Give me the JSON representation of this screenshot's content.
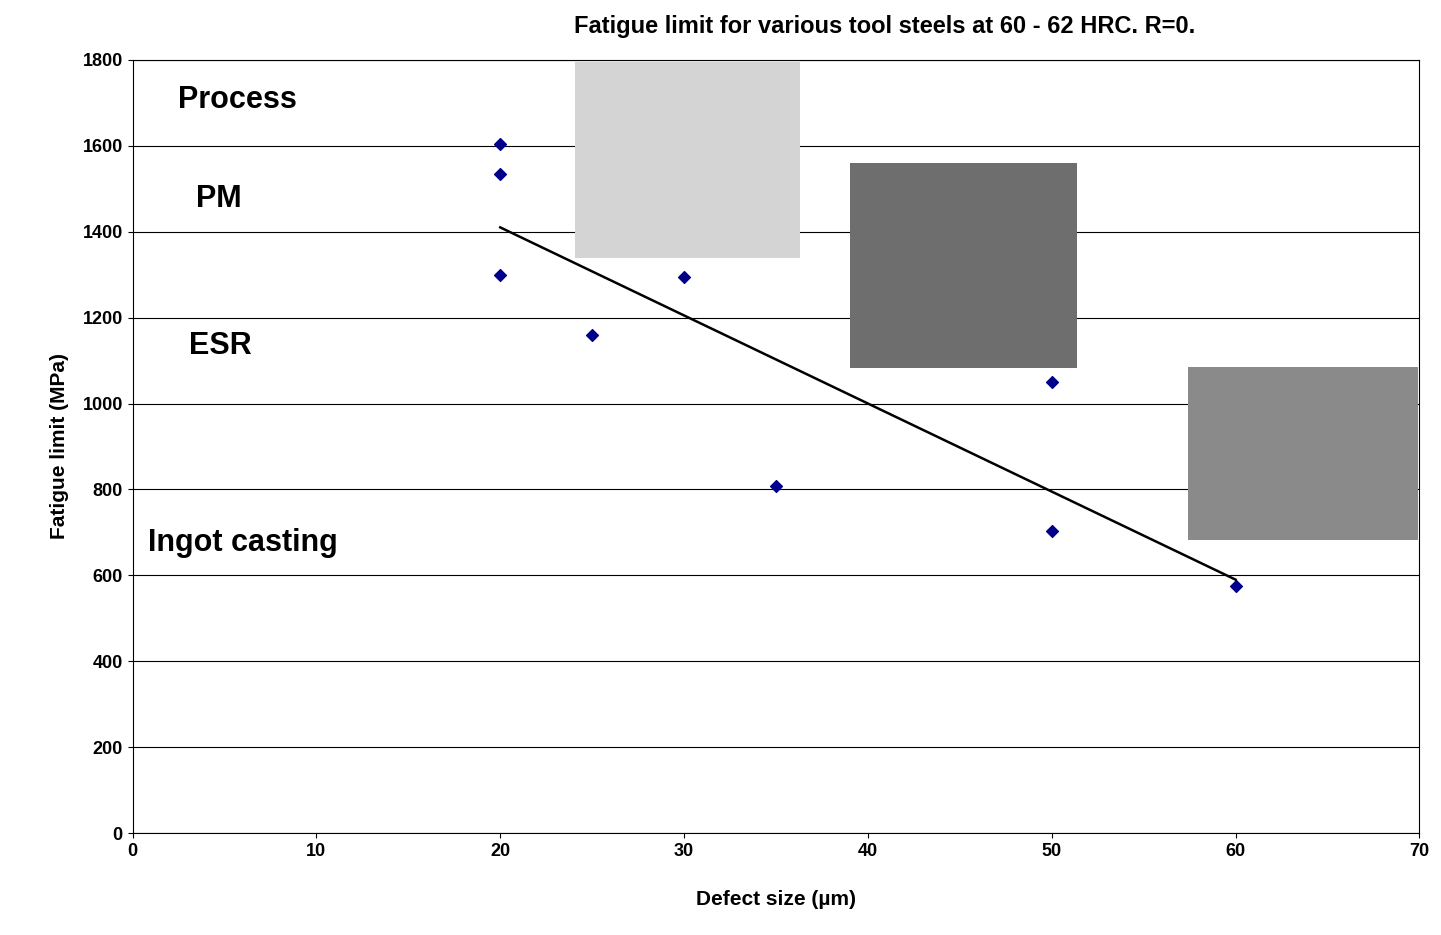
{
  "chart_data": {
    "type": "scatter",
    "title": "Fatigue limit for various tool steels at 60 - 62 HRC. R=0.",
    "x_label": "Defect size (µm)",
    "y_label": "Fatigue limit (MPa)",
    "annotations": [
      "Process",
      "PM",
      "ESR",
      "Ingot casting"
    ],
    "series": [
      {
        "type": "scatter",
        "color": "#00008b",
        "marker": "D",
        "x": [
          20,
          20,
          20,
          25,
          30,
          35,
          50,
          50,
          60
        ],
        "values": [
          1605,
          1535,
          1300,
          1160,
          1295,
          808,
          1050,
          703,
          575
        ]
      },
      {
        "type": "line",
        "color": "#000000",
        "line_style": "solid",
        "x": [
          20,
          60
        ],
        "values": [
          1410,
          590
        ]
      }
    ],
    "xlim": [
      0,
      70
    ],
    "xticks": [
      0,
      10,
      20,
      30,
      40,
      50,
      60,
      70
    ],
    "ylim": [
      0,
      1800
    ],
    "yticks": [
      0,
      200,
      400,
      600,
      800,
      1000,
      1200,
      1400,
      1600,
      1800
    ],
    "grid": "y"
  }
}
